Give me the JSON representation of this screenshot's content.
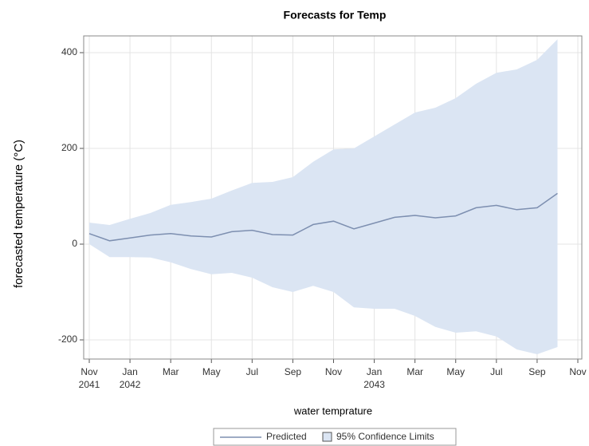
{
  "chart_data": {
    "type": "line",
    "title": "Forecasts for Temp",
    "xlabel": "water temprature",
    "ylabel": "forecasted temperature (°C)",
    "x": [
      "2041-11",
      "2041-12",
      "2042-01",
      "2042-02",
      "2042-03",
      "2042-04",
      "2042-05",
      "2042-06",
      "2042-07",
      "2042-08",
      "2042-09",
      "2042-10",
      "2042-11",
      "2042-12",
      "2043-01",
      "2043-02",
      "2043-03",
      "2043-04",
      "2043-05",
      "2043-06",
      "2043-07",
      "2043-08",
      "2043-09",
      "2043-10"
    ],
    "series": [
      {
        "name": "Predicted",
        "color": "#7d8fb0",
        "values": [
          22,
          7,
          13,
          19,
          22,
          17,
          15,
          26,
          29,
          20,
          19,
          41,
          48,
          32,
          44,
          56,
          60,
          55,
          59,
          76,
          81,
          72,
          76,
          106
        ]
      }
    ],
    "band": {
      "name": "95% Confidence Limits",
      "color": "#dbe5f3",
      "lower": [
        0,
        -27,
        -27,
        -28,
        -38,
        -52,
        -63,
        -60,
        -70,
        -90,
        -100,
        -87,
        -100,
        -132,
        -135,
        -135,
        -150,
        -173,
        -185,
        -182,
        -193,
        -220,
        -230,
        -215
      ],
      "upper": [
        45,
        40,
        53,
        65,
        82,
        88,
        95,
        112,
        128,
        130,
        140,
        172,
        198,
        200,
        225,
        250,
        275,
        285,
        305,
        335,
        358,
        365,
        385,
        428
      ]
    },
    "xlim": [
      "2041-11",
      "2043-11"
    ],
    "xticks": [
      {
        "value": "2041-11",
        "label": "Nov",
        "sublabel": "2041"
      },
      {
        "value": "2042-01",
        "label": "Jan",
        "sublabel": "2042"
      },
      {
        "value": "2042-03",
        "label": "Mar"
      },
      {
        "value": "2042-05",
        "label": "May"
      },
      {
        "value": "2042-07",
        "label": "Jul"
      },
      {
        "value": "2042-09",
        "label": "Sep"
      },
      {
        "value": "2042-11",
        "label": "Nov"
      },
      {
        "value": "2043-01",
        "label": "Jan",
        "sublabel": "2043"
      },
      {
        "value": "2043-03",
        "label": "Mar"
      },
      {
        "value": "2043-05",
        "label": "May"
      },
      {
        "value": "2043-07",
        "label": "Jul"
      },
      {
        "value": "2043-09",
        "label": "Sep"
      },
      {
        "value": "2043-11",
        "label": "Nov"
      }
    ],
    "ylim": [
      -240,
      435
    ],
    "yticks": [
      -200,
      0,
      200,
      400
    ],
    "grid": true,
    "legend": "bottom"
  }
}
